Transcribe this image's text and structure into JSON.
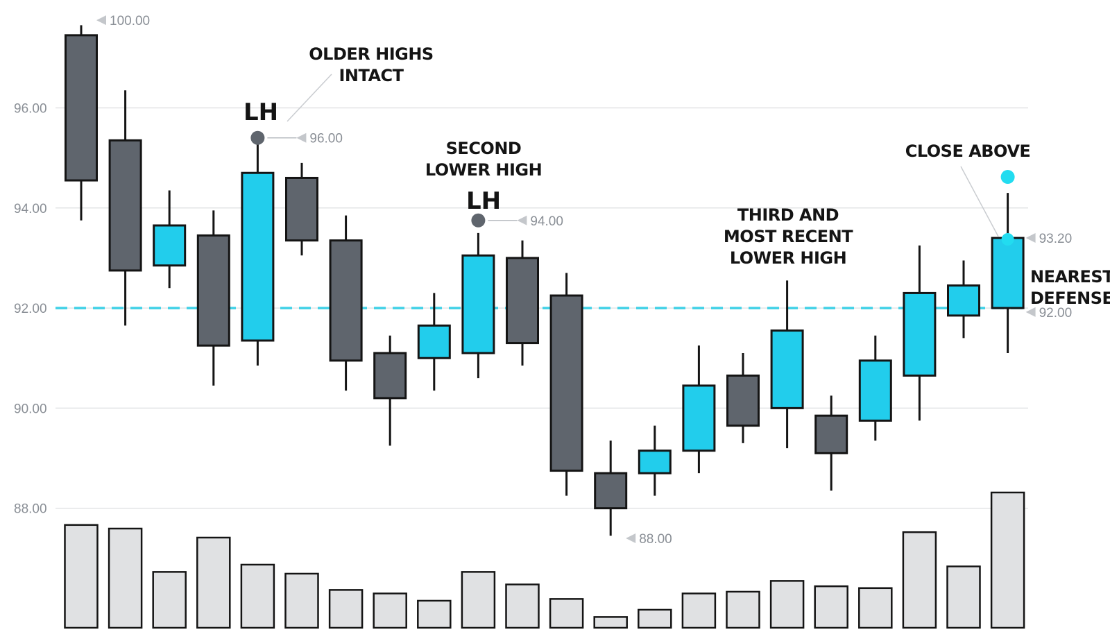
{
  "chart_data": {
    "type": "candlestick",
    "yticks": [
      88,
      90,
      92,
      94,
      96
    ],
    "ytick_labels": [
      "88.00",
      "90.00",
      "92.00",
      "94.00",
      "96.00"
    ],
    "ylim": [
      86.0,
      97.6
    ],
    "grid": true,
    "colors": {
      "up": "#22cdec",
      "down": "#5f656d",
      "outline": "#141414",
      "volume": "#e0e1e3",
      "defense_line": "#3fd1e6",
      "close_above": "#22dcf0",
      "pivot": "#5f656d"
    },
    "candles": [
      {
        "open": 97.45,
        "high": 97.65,
        "low": 93.75,
        "close": 94.55
      },
      {
        "open": 95.35,
        "high": 96.35,
        "low": 91.65,
        "close": 92.75
      },
      {
        "open": 92.85,
        "high": 94.35,
        "low": 92.4,
        "close": 93.65
      },
      {
        "open": 93.45,
        "high": 93.95,
        "low": 90.45,
        "close": 91.25
      },
      {
        "open": 91.35,
        "high": 95.3,
        "low": 90.85,
        "close": 94.7
      },
      {
        "open": 94.6,
        "high": 94.9,
        "low": 93.05,
        "close": 93.35
      },
      {
        "open": 93.35,
        "high": 93.85,
        "low": 90.35,
        "close": 90.95
      },
      {
        "open": 91.1,
        "high": 91.45,
        "low": 89.25,
        "close": 90.2
      },
      {
        "open": 91.0,
        "high": 92.3,
        "low": 90.35,
        "close": 91.65
      },
      {
        "open": 91.1,
        "high": 93.5,
        "low": 90.6,
        "close": 93.05
      },
      {
        "open": 93.0,
        "high": 93.35,
        "low": 90.85,
        "close": 91.3
      },
      {
        "open": 92.25,
        "high": 92.7,
        "low": 88.25,
        "close": 88.75
      },
      {
        "open": 88.7,
        "high": 89.35,
        "low": 87.45,
        "close": 88.0
      },
      {
        "open": 88.7,
        "high": 89.65,
        "low": 88.25,
        "close": 89.15
      },
      {
        "open": 89.15,
        "high": 91.25,
        "low": 88.7,
        "close": 90.45
      },
      {
        "open": 90.65,
        "high": 91.1,
        "low": 89.3,
        "close": 89.65
      },
      {
        "open": 90.0,
        "high": 92.55,
        "low": 89.2,
        "close": 91.55
      },
      {
        "open": 89.85,
        "high": 90.25,
        "low": 88.35,
        "close": 89.1
      },
      {
        "open": 89.75,
        "high": 91.45,
        "low": 89.35,
        "close": 90.95
      },
      {
        "open": 90.65,
        "high": 93.25,
        "low": 89.75,
        "close": 92.3
      },
      {
        "open": 91.85,
        "high": 92.95,
        "low": 91.4,
        "close": 92.45
      },
      {
        "open": 92.0,
        "high": 94.3,
        "low": 91.1,
        "close": 93.4
      }
    ],
    "volume": [
      0.57,
      0.55,
      0.31,
      0.5,
      0.35,
      0.3,
      0.21,
      0.19,
      0.15,
      0.31,
      0.24,
      0.16,
      0.06,
      0.1,
      0.19,
      0.2,
      0.26,
      0.23,
      0.22,
      0.53,
      0.34,
      0.75
    ],
    "defense_level": 92.0,
    "price_tags": [
      {
        "text": "100.00",
        "price": 97.75,
        "candle": 0
      },
      {
        "text": "96.00",
        "price": 95.4,
        "candle": 4
      },
      {
        "text": "94.00",
        "price": 93.75,
        "candle": 9
      },
      {
        "text": "93.20",
        "price": 93.4,
        "candle": 21
      },
      {
        "text": "92.00",
        "price": 91.92,
        "candle": 21
      },
      {
        "text": "88.00",
        "price": 87.4,
        "candle": 12
      }
    ],
    "pivots": [
      {
        "candle": 4,
        "price": 95.4
      },
      {
        "candle": 9,
        "price": 93.75
      }
    ],
    "close_above_marker": {
      "candle": 21,
      "price": 94.62
    },
    "annotations": {
      "lh_first": "LH",
      "lh_second": "LH",
      "older_highs": [
        "OLDER HIGHS",
        "INTACT"
      ],
      "second_lower_high": [
        "SECOND",
        "LOWER HIGH"
      ],
      "third_lower_high": [
        "THIRD AND",
        "MOST RECENT",
        "LOWER HIGH"
      ],
      "close_above": "CLOSE ABOVE",
      "nearest_defense": [
        "NEAREST",
        "DEFENSE"
      ]
    }
  }
}
